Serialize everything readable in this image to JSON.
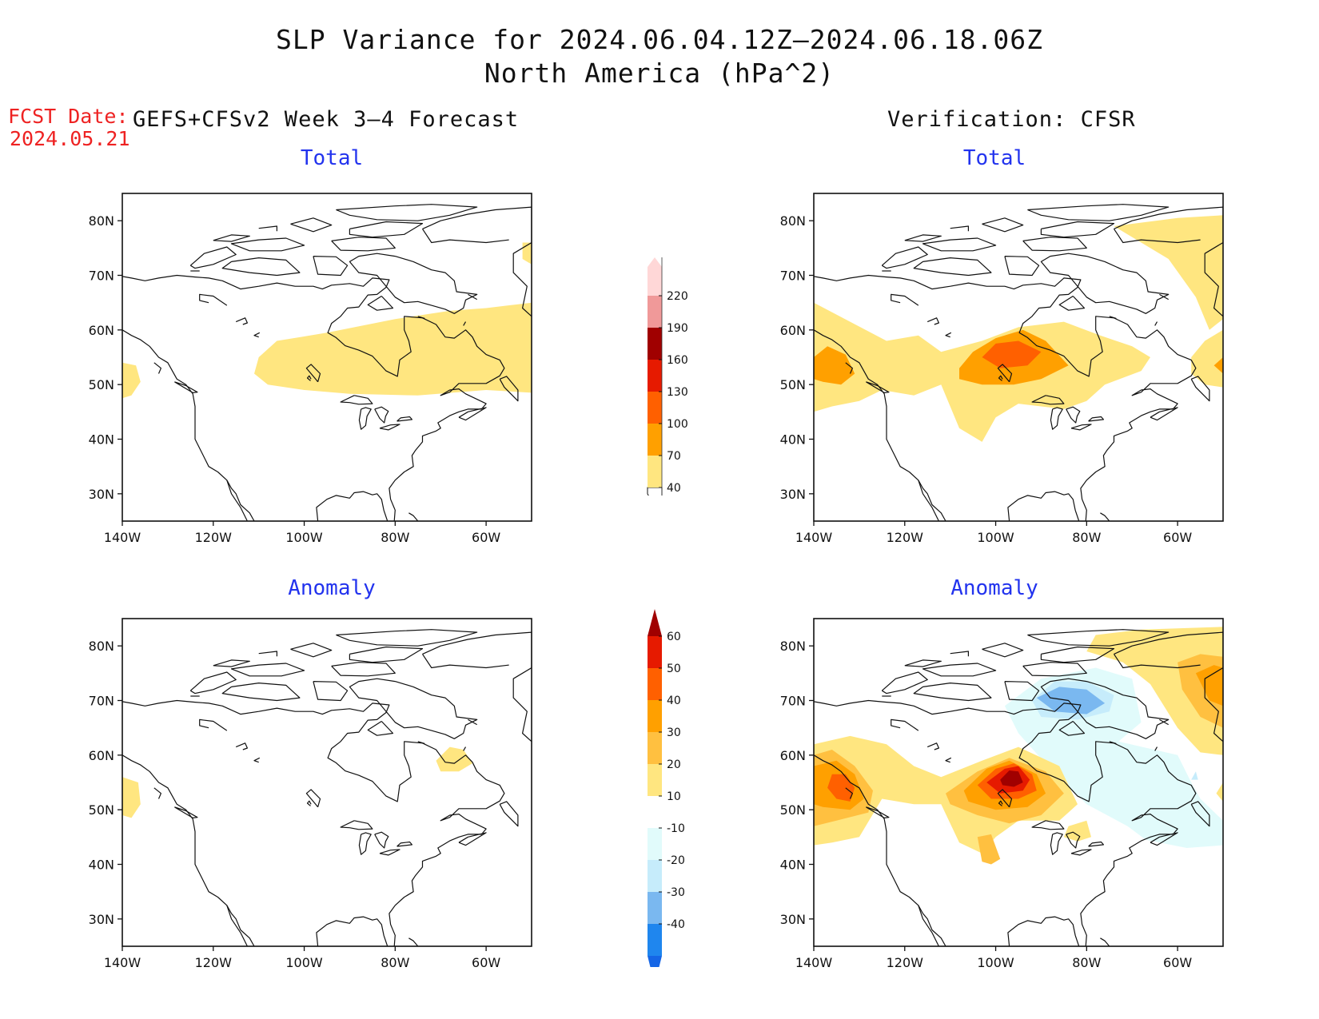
{
  "title": {
    "line1": "SLP Variance for 2024.06.04.12Z–2024.06.18.06Z",
    "line2": "North America (hPa^2)"
  },
  "fcst": {
    "label": "FCST Date:",
    "date": "2024.05.21"
  },
  "columns": {
    "left": "GEFS+CFSv2 Week 3–4 Forecast",
    "right": "Verification: CFSR"
  },
  "panels": {
    "fcst_total": "Total",
    "obs_total": "Total",
    "fcst_anom": "Anomaly",
    "obs_anom": "Anomaly"
  },
  "axes": {
    "lat_labels": [
      "80N",
      "70N",
      "60N",
      "50N",
      "40N",
      "30N"
    ],
    "lon_labels": [
      "140W",
      "120W",
      "100W",
      "80W",
      "60W"
    ],
    "lat_values": [
      80,
      70,
      60,
      50,
      40,
      30
    ],
    "lon_values": [
      -140,
      -120,
      -100,
      -80,
      -60
    ],
    "lon_range": [
      -140,
      -50
    ],
    "lat_range": [
      25,
      85
    ]
  },
  "colorbars": {
    "total": {
      "labels": [
        "40",
        "70",
        "100",
        "130",
        "160",
        "190",
        "220"
      ],
      "colors": [
        "#ffe680",
        "#ffa000",
        "#ff6000",
        "#e61a00",
        "#a00000",
        "#f09999",
        "#ffd7d7"
      ]
    },
    "anomaly": {
      "labels": [
        "-40",
        "-30",
        "-20",
        "-10",
        "10",
        "20",
        "30",
        "40",
        "50",
        "60"
      ],
      "colors": [
        "#1566e6",
        "#1f86ee",
        "#7ab8f0",
        "#c6ecfb",
        "#e1fbfb",
        "#ffffff",
        "#ffe680",
        "#ffc040",
        "#ffa000",
        "#ff6000",
        "#e61a00",
        "#a00000"
      ]
    }
  },
  "colors": {
    "c40": "#ffe680",
    "c70": "#ffa000",
    "c100": "#ff6000",
    "a10": "#ffe680",
    "a20": "#ffc040",
    "a30": "#ffa000",
    "a40": "#ff6000",
    "a50": "#e61a00",
    "a60": "#a00000",
    "n10": "#e1fbfb",
    "n20": "#c6ecfb",
    "n30": "#7ab8f0"
  }
}
